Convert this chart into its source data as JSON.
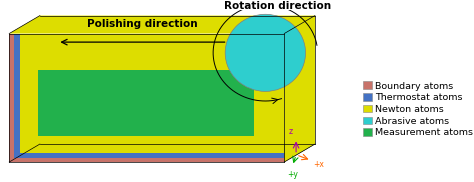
{
  "colors": {
    "boundary": "#C8736A",
    "thermostat": "#4472C4",
    "newton": "#DDDD00",
    "abrasive": "#2ECECE",
    "measurement": "#22B14C",
    "background": "#FFFFFF",
    "coord_x": "#FF6600",
    "coord_y": "#00AA00",
    "coord_z": "#AA00AA"
  },
  "legend_labels": [
    "Boundary atoms",
    "Thermostat atoms",
    "Newton atoms",
    "Abrasive atoms",
    "Measurement atoms"
  ],
  "legend_colors": [
    "#C8736A",
    "#4472C4",
    "#DDDD00",
    "#2ECECE",
    "#22B14C"
  ],
  "title_polishing": "Polishing direction",
  "title_rotation": "Rotation direction",
  "font_size_labels": 7.5,
  "font_size_legend": 6.8,
  "font_size_coord": 5.5
}
